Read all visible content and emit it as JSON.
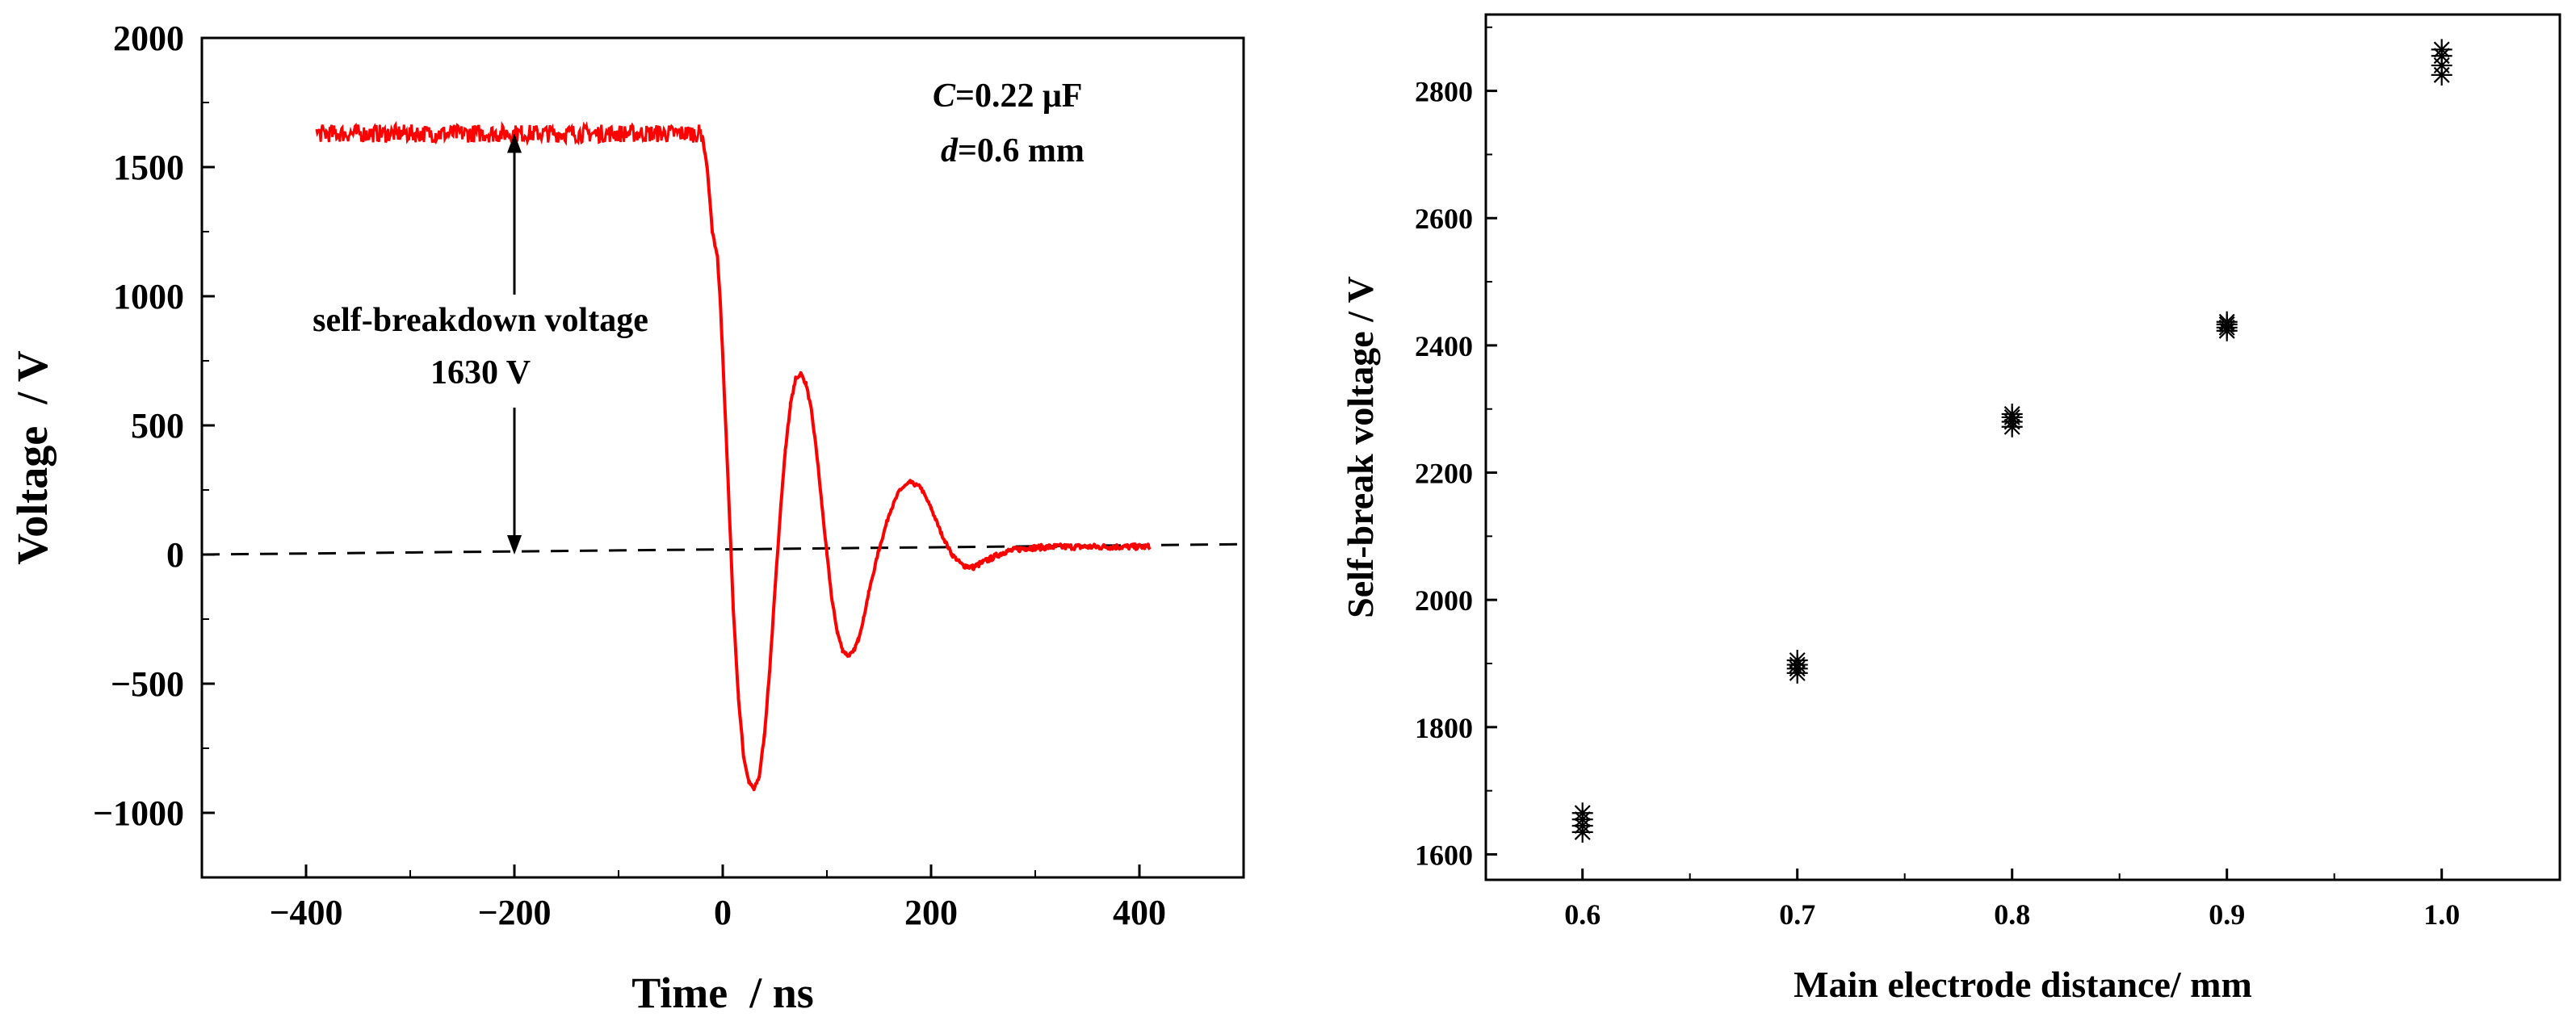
{
  "chart_data": [
    {
      "type": "line",
      "title": "",
      "xlabel": "Time  / ns",
      "ylabel": "Voltage  / V",
      "xlim": [
        -500,
        500
      ],
      "ylim": [
        -1250,
        2000
      ],
      "xticks": [
        -400,
        -200,
        0,
        200,
        400
      ],
      "yticks": [
        -1000,
        -500,
        0,
        500,
        1000,
        1500,
        2000
      ],
      "xtick_labels": [
        "−400",
        "−200",
        "0",
        "200",
        "400"
      ],
      "ytick_labels": [
        "−1000",
        "−500",
        "0",
        "500",
        "1000",
        "1500",
        "2000"
      ],
      "grid": false,
      "series": [
        {
          "name": "voltage",
          "color": "#ff0000",
          "plateau_value": 1630,
          "x": [
            -390,
            -20,
            -15,
            -10,
            -5,
            -2,
            5,
            10,
            15,
            20,
            25,
            30,
            35,
            40,
            45,
            50,
            55,
            60,
            65,
            70,
            75,
            80,
            85,
            90,
            95,
            100,
            105,
            110,
            115,
            120,
            125,
            130,
            135,
            140,
            150,
            160,
            170,
            180,
            190,
            200,
            210,
            220,
            230,
            240,
            255,
            270,
            290,
            320,
            360,
            410
          ],
          "y": [
            1630,
            1630,
            1500,
            1250,
            1150,
            950,
            300,
            -200,
            -550,
            -780,
            -880,
            -910,
            -860,
            -700,
            -450,
            -150,
            150,
            400,
            580,
            680,
            700,
            660,
            560,
            400,
            200,
            0,
            -180,
            -300,
            -370,
            -390,
            -380,
            -330,
            -250,
            -150,
            20,
            160,
            250,
            280,
            260,
            180,
            80,
            0,
            -40,
            -50,
            -20,
            10,
            25,
            30,
            30,
            30
          ]
        },
        {
          "name": "zero reference",
          "style": "dashed",
          "color": "#000000",
          "x": [
            -500,
            500
          ],
          "y": [
            0,
            40
          ]
        }
      ],
      "annotations": {
        "capacitance_var": "C",
        "capacitance_value": "=0.22 μF",
        "distance_var": "d",
        "distance_value": "=0.6 mm",
        "arrow_label_line1": "self-breakdown voltage",
        "arrow_label_line2": "1630 V",
        "arrow_x": -200,
        "arrow_top": 1630,
        "arrow_bottom": 0
      }
    },
    {
      "type": "scatter",
      "title": "",
      "xlabel": "Main electrode distance/ mm",
      "ylabel": "Self-break voltage / V",
      "xlim": [
        0.555,
        1.055
      ],
      "ylim": [
        1560,
        2920
      ],
      "xticks": [
        0.6,
        0.7,
        0.8,
        0.9,
        1.0
      ],
      "yticks": [
        1600,
        1800,
        2000,
        2200,
        2400,
        2600,
        2800
      ],
      "xtick_labels": [
        "0.6",
        "0.7",
        "0.8",
        "0.9",
        "1.0"
      ],
      "ytick_labels": [
        "1600",
        "1800",
        "2000",
        "2200",
        "2400",
        "2600",
        "2800"
      ],
      "grid": false,
      "marker": "asterisk",
      "series": [
        {
          "name": "self-break voltage",
          "color": "#000000",
          "x": [
            0.6,
            0.6,
            0.6,
            0.6,
            0.7,
            0.7,
            0.7,
            0.7,
            0.8,
            0.8,
            0.8,
            0.8,
            0.9,
            0.9,
            0.9,
            0.9,
            1.0,
            1.0,
            1.0,
            1.0
          ],
          "y": [
            1635,
            1645,
            1655,
            1665,
            1885,
            1892,
            1898,
            1905,
            2272,
            2280,
            2287,
            2292,
            2423,
            2428,
            2433,
            2437,
            2825,
            2840,
            2855,
            2865
          ]
        }
      ]
    }
  ]
}
